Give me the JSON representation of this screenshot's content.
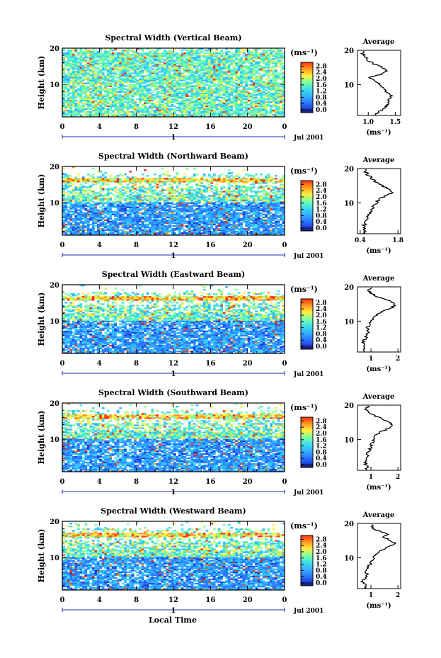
{
  "figure": {
    "xlabel": "Local Time",
    "date_label": "Jul 2001",
    "day_label": "1",
    "ylabel": "Height (km)",
    "unit_label": "(ms⁻¹)",
    "avg_title": "Average",
    "avg_xlabel": "(ms⁻¹)",
    "colormap": [
      "#1a237e",
      "#1e3fd8",
      "#2c7bff",
      "#33b6ff",
      "#3fe0e8",
      "#7fffa0",
      "#ffee40",
      "#ff9a20",
      "#ff3010"
    ]
  },
  "chart_data": [
    {
      "type": "heatmap",
      "title": "Spectral Width (Vertical Beam)",
      "x_ticks": [
        "0",
        "4",
        "8",
        "12",
        "16",
        "20",
        "0"
      ],
      "y_ticks": [
        "20",
        "10"
      ],
      "xlim": [
        0,
        24
      ],
      "ylim": [
        1,
        20
      ],
      "colorbar": {
        "ticks": [
          "2.8",
          "2.4",
          "2.0",
          "1.6",
          "1.2",
          "0.8",
          "0.4",
          "0.0"
        ],
        "range": [
          0,
          3.0
        ]
      },
      "average": {
        "xticks": [
          "1.0",
          "1.5"
        ],
        "xlim": [
          0.8,
          1.6
        ],
        "height": [
          1,
          2,
          3,
          4,
          5,
          6,
          7,
          8,
          9,
          10,
          11,
          12,
          13,
          14,
          15,
          16,
          17,
          18,
          19,
          20
        ],
        "value": [
          1.12,
          1.2,
          1.28,
          1.35,
          1.38,
          1.4,
          1.42,
          1.32,
          1.28,
          1.22,
          1.12,
          1.02,
          1.25,
          1.34,
          1.28,
          1.1,
          1.0,
          0.95,
          0.9,
          0.92
        ]
      }
    },
    {
      "type": "heatmap",
      "title": "Spectral Width (Northward Beam)",
      "x_ticks": [
        "0",
        "4",
        "8",
        "12",
        "16",
        "20",
        "0"
      ],
      "y_ticks": [
        "20",
        "10"
      ],
      "xlim": [
        0,
        24
      ],
      "ylim": [
        1,
        20
      ],
      "colorbar": {
        "ticks": [
          "2.8",
          "2.4",
          "2.0",
          "1.6",
          "1.2",
          "0.8",
          "0.4",
          "0.0"
        ],
        "range": [
          0,
          3.0
        ]
      },
      "average": {
        "xticks": [
          "0.4",
          "1.8"
        ],
        "xlim": [
          0.3,
          1.9
        ],
        "height": [
          1,
          2,
          3,
          4,
          5,
          6,
          7,
          8,
          9,
          10,
          11,
          12,
          13,
          14,
          15,
          16,
          17,
          18,
          19,
          20
        ],
        "value": [
          0.55,
          0.6,
          0.52,
          0.58,
          0.62,
          0.7,
          0.78,
          0.85,
          0.9,
          1.0,
          1.1,
          1.3,
          1.6,
          1.45,
          1.2,
          1.0,
          0.85,
          0.7,
          0.6,
          0.65
        ]
      }
    },
    {
      "type": "heatmap",
      "title": "Spectral Width (Eastward Beam)",
      "x_ticks": [
        "0",
        "4",
        "8",
        "12",
        "16",
        "20",
        "0"
      ],
      "y_ticks": [
        "20",
        "10"
      ],
      "xlim": [
        0,
        24
      ],
      "ylim": [
        1,
        20
      ],
      "colorbar": {
        "ticks": [
          "2.8",
          "2.4",
          "2.0",
          "1.6",
          "1.2",
          "0.8",
          "0.4",
          "0.0"
        ],
        "range": [
          0,
          3.0
        ]
      },
      "average": {
        "xticks": [
          "1",
          "2"
        ],
        "xlim": [
          0.5,
          2.1
        ],
        "height": [
          1,
          2,
          3,
          4,
          5,
          6,
          7,
          8,
          9,
          10,
          11,
          12,
          13,
          14,
          15,
          16,
          17,
          18,
          19,
          20
        ],
        "value": [
          0.7,
          0.72,
          0.75,
          0.7,
          0.8,
          0.85,
          0.9,
          0.85,
          0.95,
          1.0,
          1.1,
          1.2,
          1.5,
          1.8,
          1.9,
          1.7,
          1.3,
          1.0,
          0.9,
          1.0
        ]
      }
    },
    {
      "type": "heatmap",
      "title": "Spectral Width (Southward Beam)",
      "x_ticks": [
        "0",
        "4",
        "8",
        "12",
        "16",
        "20",
        "0"
      ],
      "y_ticks": [
        "20",
        "10"
      ],
      "xlim": [
        0,
        24
      ],
      "ylim": [
        1,
        20
      ],
      "colorbar": {
        "ticks": [
          "2.8",
          "2.4",
          "2.0",
          "1.6",
          "1.2",
          "0.8",
          "0.4",
          "0.0"
        ],
        "range": [
          0,
          3.0
        ]
      },
      "average": {
        "xticks": [
          "1",
          "2"
        ],
        "xlim": [
          0.5,
          2.1
        ],
        "height": [
          1,
          2,
          3,
          4,
          5,
          6,
          7,
          8,
          9,
          10,
          11,
          12,
          13,
          14,
          15,
          16,
          17,
          18,
          19,
          20
        ],
        "value": [
          0.8,
          0.85,
          0.78,
          0.82,
          0.9,
          0.88,
          0.95,
          1.0,
          1.05,
          1.1,
          1.15,
          1.3,
          1.6,
          1.85,
          1.7,
          1.4,
          1.1,
          0.9,
          0.8,
          0.95
        ]
      }
    },
    {
      "type": "heatmap",
      "title": "Spectral Width (Westward Beam)",
      "x_ticks": [
        "0",
        "4",
        "8",
        "12",
        "16",
        "20",
        "0"
      ],
      "y_ticks": [
        "20",
        "10"
      ],
      "xlim": [
        0,
        24
      ],
      "ylim": [
        1,
        20
      ],
      "colorbar": {
        "ticks": [
          "2.8",
          "2.4",
          "2.0",
          "1.6",
          "1.2",
          "0.8",
          "0.4",
          "0.0"
        ],
        "range": [
          0,
          3.0
        ]
      },
      "average": {
        "xticks": [
          "1",
          "2"
        ],
        "xlim": [
          0.5,
          2.1
        ],
        "height": [
          1,
          2,
          3,
          4,
          5,
          6,
          7,
          8,
          9,
          10,
          11,
          12,
          13,
          14,
          15,
          16,
          17,
          18,
          19,
          20
        ],
        "value": [
          0.75,
          0.8,
          0.7,
          0.78,
          0.85,
          0.82,
          0.9,
          0.95,
          1.0,
          1.1,
          1.2,
          1.35,
          1.6,
          1.9,
          1.75,
          1.5,
          1.6,
          1.2,
          1.0,
          1.1
        ]
      }
    }
  ]
}
